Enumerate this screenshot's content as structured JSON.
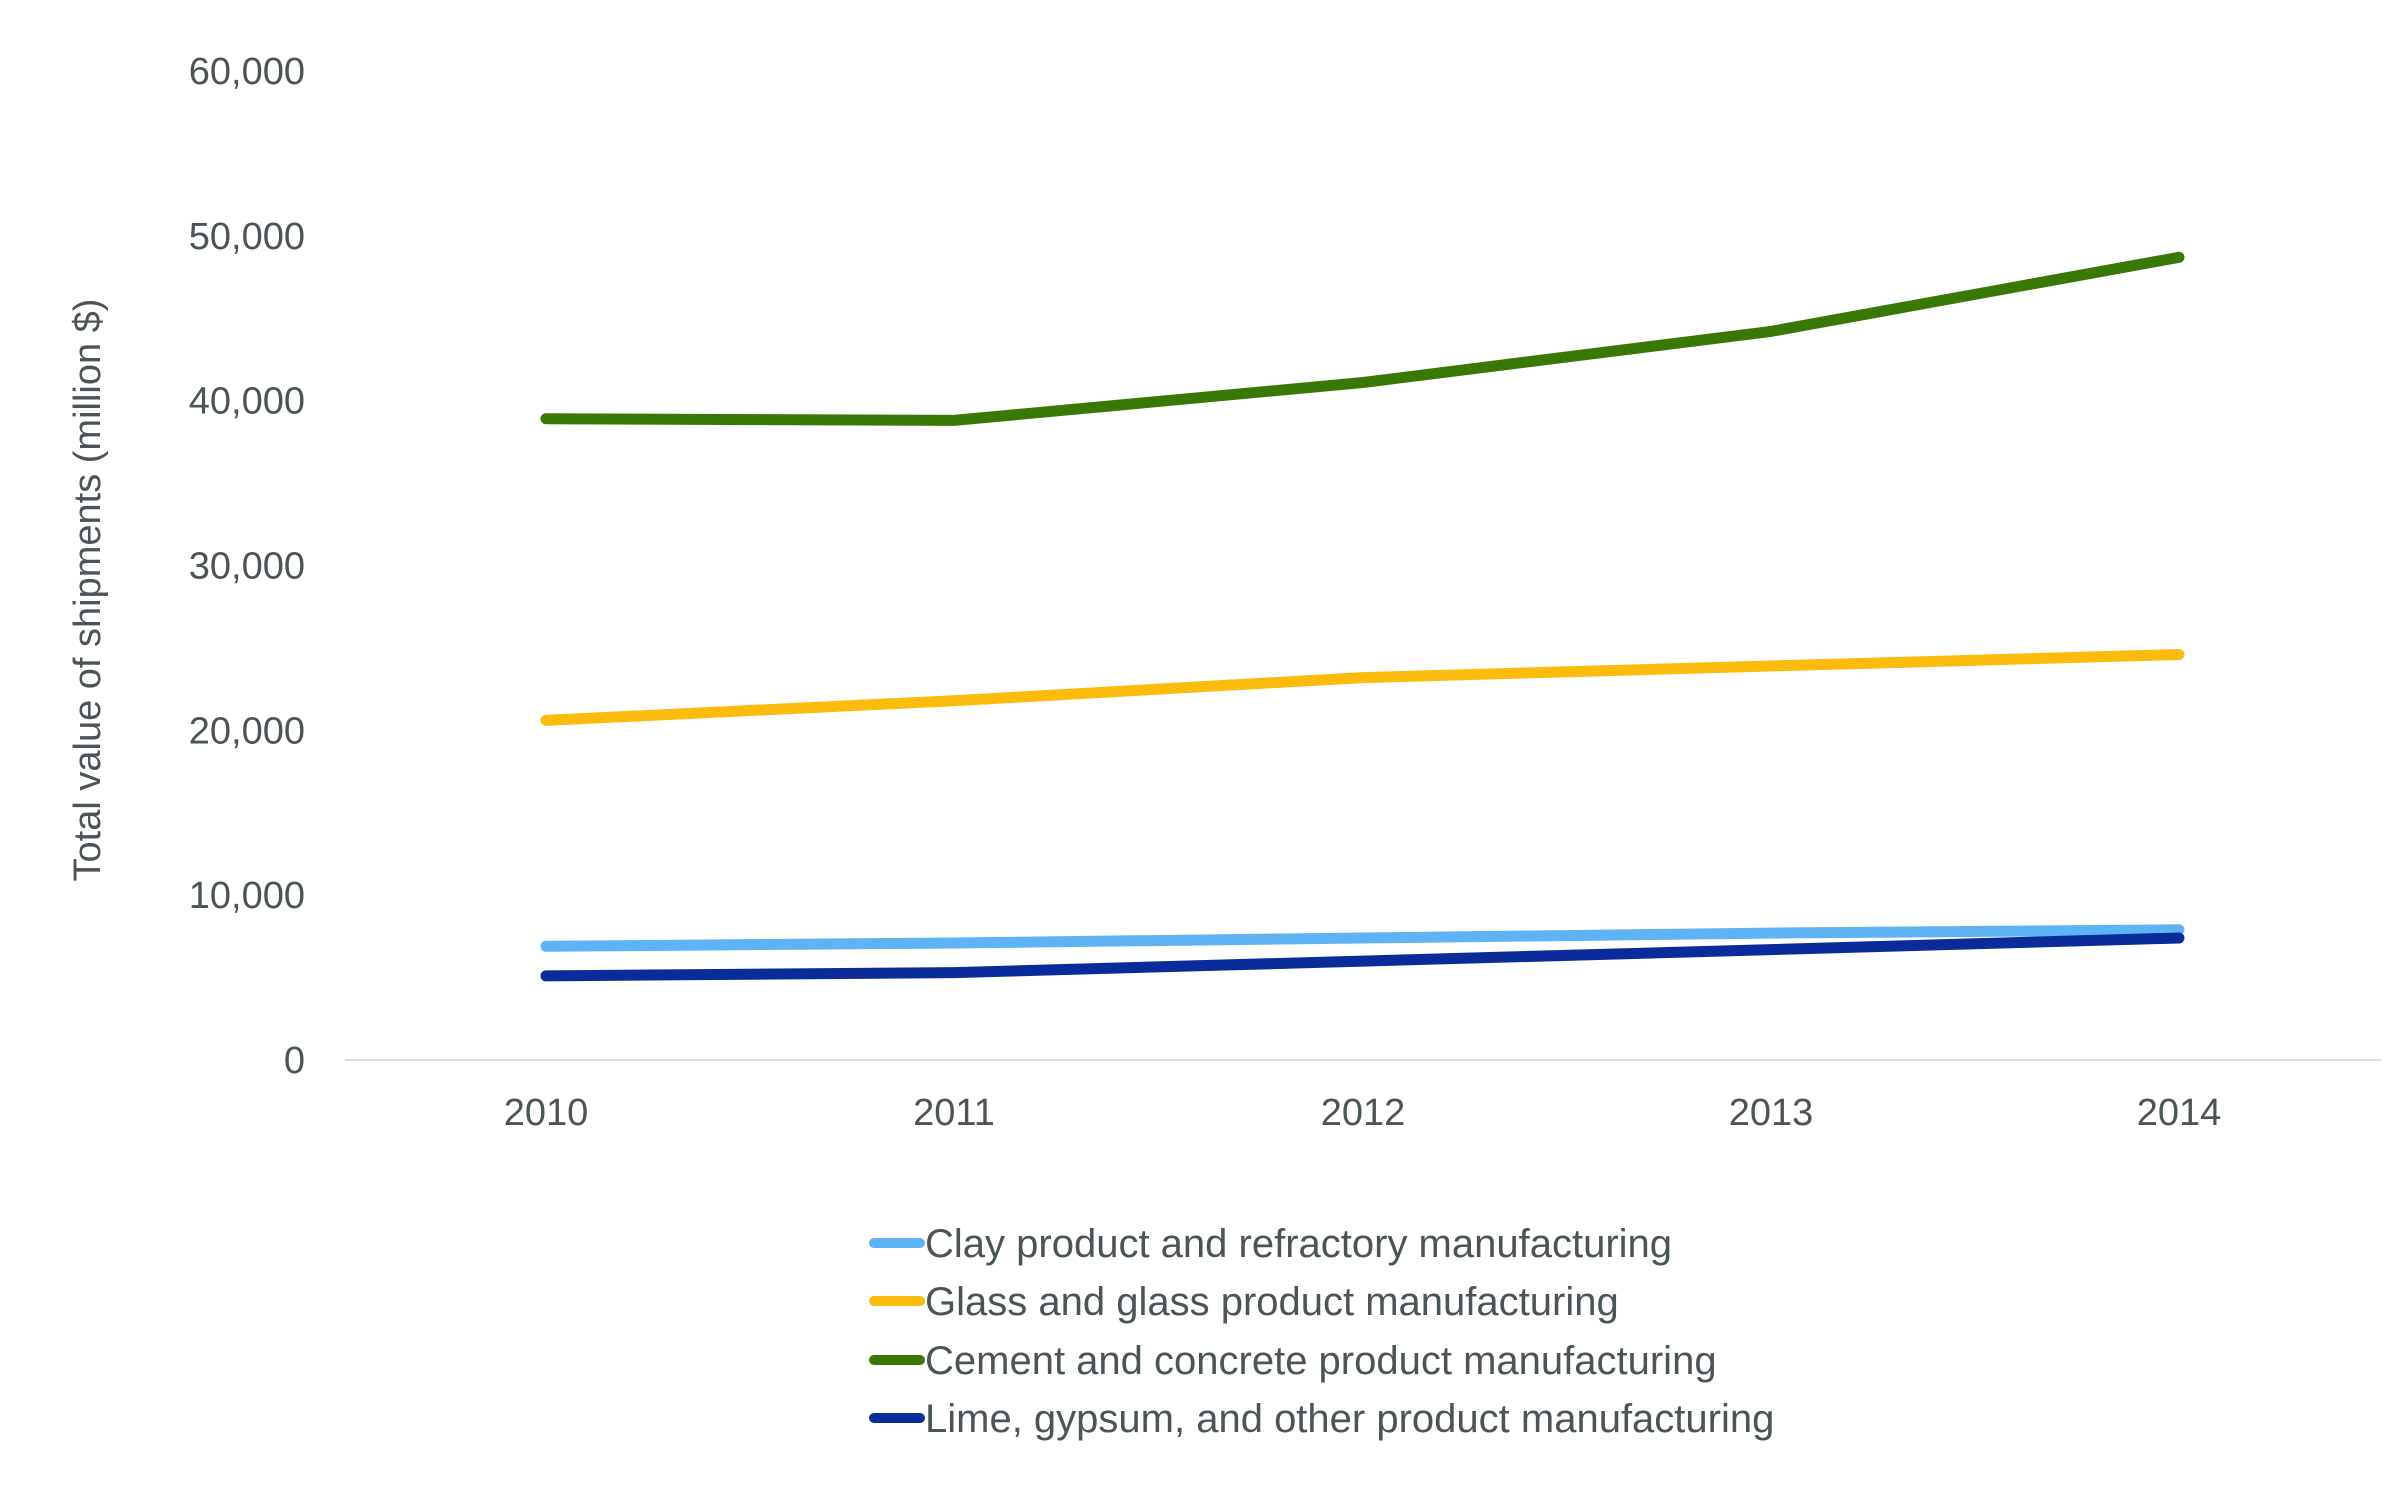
{
  "chart_data": {
    "type": "line",
    "title": "",
    "xlabel": "",
    "ylabel": "Total value of shipments (million $)",
    "categories": [
      "2010",
      "2011",
      "2012",
      "2013",
      "2014"
    ],
    "ylim": [
      0,
      60000
    ],
    "yticks": [
      "0",
      "10,000",
      "20,000",
      "30,000",
      "40,000",
      "50,000",
      "60,000"
    ],
    "ytick_values": [
      0,
      10000,
      20000,
      30000,
      40000,
      50000,
      60000
    ],
    "grid": false,
    "legend_placement": "bottom",
    "series": [
      {
        "name": "Clay product and refractory manufacturing",
        "color": "#5eb3f5",
        "values": [
          6900,
          7100,
          7400,
          7700,
          7900
        ]
      },
      {
        "name": "Glass and glass product manufacturing",
        "color": "#fbbc0d",
        "values": [
          20600,
          21800,
          23200,
          23900,
          24600
        ]
      },
      {
        "name": "Cement and concrete product manufacturing",
        "color": "#3a7806",
        "values": [
          38900,
          38800,
          41100,
          44200,
          48700
        ]
      },
      {
        "name": "Lime, gypsum, and other product manufacturing",
        "color": "#0a2b9a",
        "values": [
          5100,
          5300,
          6000,
          6700,
          7400
        ]
      }
    ]
  }
}
